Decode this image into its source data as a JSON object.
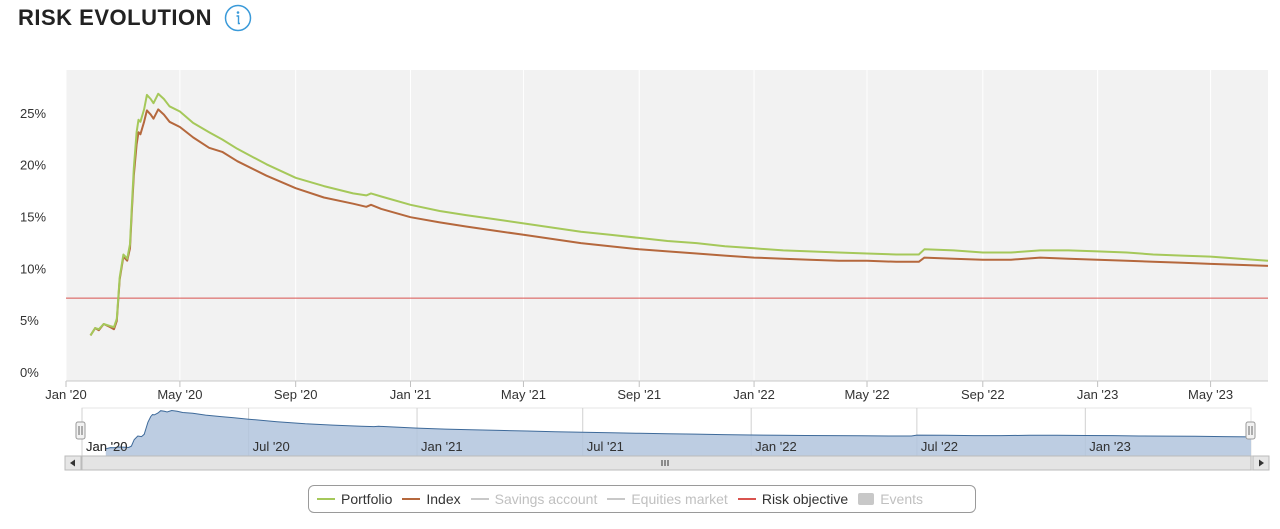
{
  "header": {
    "title": "RISK EVOLUTION",
    "info_icon": "info-icon"
  },
  "colors": {
    "portfolio": "#a5c85a",
    "index": "#b5683d",
    "risk_objective": "#d9534f",
    "plot_bg": "#f2f2f2",
    "navigator_fill": "#b1c4dd",
    "navigator_line": "#3e6a9a",
    "disabled": "#c8c8c8"
  },
  "chart_data": {
    "type": "line",
    "x_axis": {
      "type": "datetime",
      "range": [
        "2020-01-01",
        "2023-07-01"
      ],
      "tick_labels": [
        "Jan '20",
        "May '20",
        "Sep '20",
        "Jan '21",
        "May '21",
        "Sep '21",
        "Jan '22",
        "May '22",
        "Sep '22",
        "Jan '23",
        "May '23"
      ]
    },
    "y_axis": {
      "range": [
        0,
        0.3
      ],
      "tick_labels": [
        "0%",
        "5%",
        "10%",
        "15%",
        "20%",
        "25%"
      ],
      "tick_values": [
        0,
        0.05,
        0.1,
        0.15,
        0.2,
        0.25
      ]
    },
    "grid": true,
    "series": [
      {
        "name": "Portfolio",
        "color_key": "portfolio",
        "points": [
          [
            "2020-01-27",
            0.044
          ],
          [
            "2020-02-01",
            0.051
          ],
          [
            "2020-02-05",
            0.05
          ],
          [
            "2020-02-10",
            0.055
          ],
          [
            "2020-02-17",
            0.053
          ],
          [
            "2020-02-21",
            0.052
          ],
          [
            "2020-02-24",
            0.06
          ],
          [
            "2020-02-27",
            0.1
          ],
          [
            "2020-03-02",
            0.122
          ],
          [
            "2020-03-06",
            0.118
          ],
          [
            "2020-03-09",
            0.132
          ],
          [
            "2020-03-11",
            0.17
          ],
          [
            "2020-03-13",
            0.205
          ],
          [
            "2020-03-16",
            0.24
          ],
          [
            "2020-03-18",
            0.252
          ],
          [
            "2020-03-20",
            0.25
          ],
          [
            "2020-03-24",
            0.262
          ],
          [
            "2020-03-27",
            0.276
          ],
          [
            "2020-03-31",
            0.272
          ],
          [
            "2020-04-03",
            0.268
          ],
          [
            "2020-04-08",
            0.277
          ],
          [
            "2020-04-14",
            0.272
          ],
          [
            "2020-04-20",
            0.265
          ],
          [
            "2020-05-01",
            0.26
          ],
          [
            "2020-05-15",
            0.249
          ],
          [
            "2020-06-01",
            0.24
          ],
          [
            "2020-06-15",
            0.233
          ],
          [
            "2020-07-01",
            0.224
          ],
          [
            "2020-08-01",
            0.209
          ],
          [
            "2020-09-01",
            0.196
          ],
          [
            "2020-10-01",
            0.188
          ],
          [
            "2020-11-01",
            0.181
          ],
          [
            "2020-11-15",
            0.179
          ],
          [
            "2020-11-20",
            0.181
          ],
          [
            "2020-12-01",
            0.178
          ],
          [
            "2021-01-01",
            0.17
          ],
          [
            "2021-02-01",
            0.164
          ],
          [
            "2021-03-01",
            0.16
          ],
          [
            "2021-04-01",
            0.156
          ],
          [
            "2021-05-01",
            0.152
          ],
          [
            "2021-06-01",
            0.148
          ],
          [
            "2021-07-01",
            0.144
          ],
          [
            "2021-08-01",
            0.141
          ],
          [
            "2021-09-01",
            0.138
          ],
          [
            "2021-10-01",
            0.135
          ],
          [
            "2021-11-01",
            0.133
          ],
          [
            "2021-12-01",
            0.13
          ],
          [
            "2022-01-01",
            0.128
          ],
          [
            "2022-02-01",
            0.126
          ],
          [
            "2022-03-01",
            0.125
          ],
          [
            "2022-04-01",
            0.124
          ],
          [
            "2022-05-01",
            0.123
          ],
          [
            "2022-06-01",
            0.122
          ],
          [
            "2022-06-25",
            0.122
          ],
          [
            "2022-07-01",
            0.127
          ],
          [
            "2022-08-01",
            0.126
          ],
          [
            "2022-09-01",
            0.124
          ],
          [
            "2022-10-01",
            0.124
          ],
          [
            "2022-11-01",
            0.126
          ],
          [
            "2022-12-01",
            0.126
          ],
          [
            "2023-01-01",
            0.125
          ],
          [
            "2023-02-01",
            0.124
          ],
          [
            "2023-03-01",
            0.122
          ],
          [
            "2023-04-01",
            0.121
          ],
          [
            "2023-05-01",
            0.12
          ],
          [
            "2023-06-01",
            0.118
          ],
          [
            "2023-07-01",
            0.116
          ]
        ]
      },
      {
        "name": "Index",
        "color_key": "index",
        "points": [
          [
            "2020-01-27",
            0.044
          ],
          [
            "2020-02-01",
            0.051
          ],
          [
            "2020-02-05",
            0.049
          ],
          [
            "2020-02-10",
            0.055
          ],
          [
            "2020-02-17",
            0.052
          ],
          [
            "2020-02-21",
            0.05
          ],
          [
            "2020-02-24",
            0.058
          ],
          [
            "2020-02-27",
            0.098
          ],
          [
            "2020-03-02",
            0.12
          ],
          [
            "2020-03-06",
            0.116
          ],
          [
            "2020-03-09",
            0.128
          ],
          [
            "2020-03-11",
            0.165
          ],
          [
            "2020-03-13",
            0.198
          ],
          [
            "2020-03-16",
            0.228
          ],
          [
            "2020-03-18",
            0.24
          ],
          [
            "2020-03-20",
            0.238
          ],
          [
            "2020-03-24",
            0.25
          ],
          [
            "2020-03-27",
            0.261
          ],
          [
            "2020-03-31",
            0.257
          ],
          [
            "2020-04-03",
            0.253
          ],
          [
            "2020-04-08",
            0.262
          ],
          [
            "2020-04-14",
            0.257
          ],
          [
            "2020-04-20",
            0.25
          ],
          [
            "2020-05-01",
            0.245
          ],
          [
            "2020-05-15",
            0.235
          ],
          [
            "2020-06-01",
            0.225
          ],
          [
            "2020-06-15",
            0.221
          ],
          [
            "2020-07-01",
            0.212
          ],
          [
            "2020-08-01",
            0.198
          ],
          [
            "2020-09-01",
            0.186
          ],
          [
            "2020-10-01",
            0.177
          ],
          [
            "2020-11-01",
            0.171
          ],
          [
            "2020-11-15",
            0.168
          ],
          [
            "2020-11-20",
            0.17
          ],
          [
            "2020-12-01",
            0.166
          ],
          [
            "2021-01-01",
            0.158
          ],
          [
            "2021-02-01",
            0.153
          ],
          [
            "2021-03-01",
            0.149
          ],
          [
            "2021-04-01",
            0.145
          ],
          [
            "2021-05-01",
            0.141
          ],
          [
            "2021-06-01",
            0.137
          ],
          [
            "2021-07-01",
            0.133
          ],
          [
            "2021-08-01",
            0.13
          ],
          [
            "2021-09-01",
            0.127
          ],
          [
            "2021-10-01",
            0.125
          ],
          [
            "2021-11-01",
            0.123
          ],
          [
            "2021-12-01",
            0.121
          ],
          [
            "2022-01-01",
            0.119
          ],
          [
            "2022-02-01",
            0.118
          ],
          [
            "2022-03-01",
            0.117
          ],
          [
            "2022-04-01",
            0.116
          ],
          [
            "2022-05-01",
            0.116
          ],
          [
            "2022-06-01",
            0.115
          ],
          [
            "2022-06-25",
            0.115
          ],
          [
            "2022-07-01",
            0.119
          ],
          [
            "2022-08-01",
            0.118
          ],
          [
            "2022-09-01",
            0.117
          ],
          [
            "2022-10-01",
            0.117
          ],
          [
            "2022-11-01",
            0.119
          ],
          [
            "2022-12-01",
            0.118
          ],
          [
            "2023-01-01",
            0.117
          ],
          [
            "2023-02-01",
            0.116
          ],
          [
            "2023-03-01",
            0.115
          ],
          [
            "2023-04-01",
            0.114
          ],
          [
            "2023-05-01",
            0.113
          ],
          [
            "2023-06-01",
            0.112
          ],
          [
            "2023-07-01",
            0.111
          ]
        ]
      }
    ],
    "reference_lines": [
      {
        "name": "Risk objective",
        "value": 0.08,
        "color_key": "risk_objective"
      }
    ]
  },
  "navigator": {
    "tick_labels": [
      "Jan '20",
      "Jul '20",
      "Jan '21",
      "Jul '21",
      "Jan '22",
      "Jul '22",
      "Jan '23"
    ],
    "tick_dates": [
      "2020-01-01",
      "2020-07-01",
      "2021-01-01",
      "2021-07-01",
      "2022-01-01",
      "2022-07-01",
      "2023-01-01"
    ],
    "scroll_left_icon": "arrow-left-icon",
    "scroll_right_icon": "arrow-right-icon",
    "grip_icon": "grip-icon"
  },
  "legend": {
    "items": [
      {
        "label": "Portfolio",
        "color_key": "portfolio",
        "shape": "line",
        "enabled": true
      },
      {
        "label": "Index",
        "color_key": "index",
        "shape": "line",
        "enabled": true
      },
      {
        "label": "Savings account",
        "color_key": "disabled",
        "shape": "line",
        "enabled": false
      },
      {
        "label": "Equities market",
        "color_key": "disabled",
        "shape": "line",
        "enabled": false
      },
      {
        "label": "Risk objective",
        "color_key": "risk_objective",
        "shape": "line",
        "enabled": true
      },
      {
        "label": "Events",
        "color_key": "disabled",
        "shape": "box",
        "enabled": false
      }
    ]
  }
}
